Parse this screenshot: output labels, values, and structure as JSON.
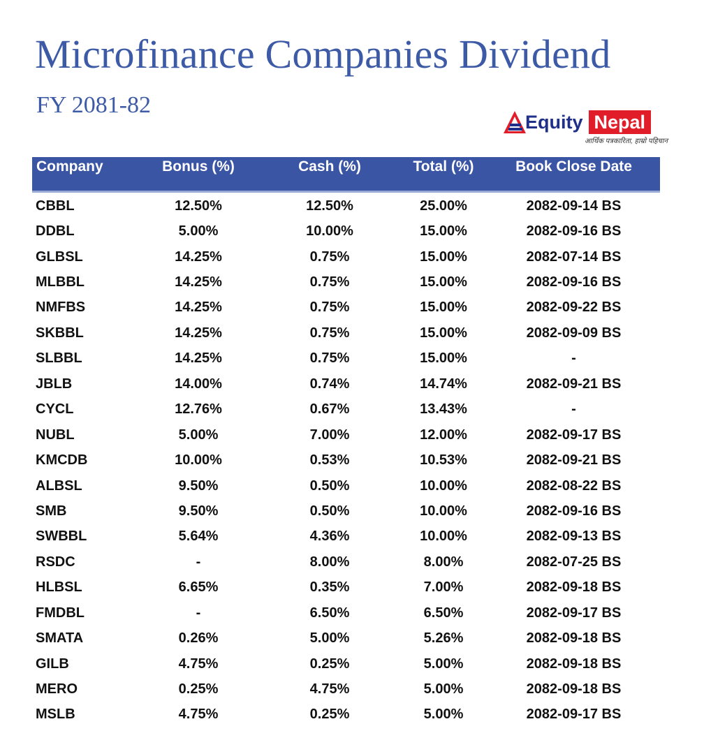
{
  "title": "Microfinance Companies Dividend",
  "subtitle": "FY 2081-82",
  "logo": {
    "brand_part1": "Equity",
    "brand_part2": "Nepal",
    "tagline": "आर्थिक पत्रकारिता, हाम्रो पहिचान",
    "colors": {
      "navy": "#1f2f8a",
      "red": "#e11d2a"
    }
  },
  "colors": {
    "accent": "#3d5aa6",
    "header_bg": "#3b55a5"
  },
  "table": {
    "headers": [
      "Company",
      "Bonus (%)",
      "Cash (%)",
      "Total (%)",
      "Book Close Date"
    ],
    "rows": [
      [
        "CBBL",
        "12.50%",
        "12.50%",
        "25.00%",
        "2082-09-14 BS"
      ],
      [
        "DDBL",
        "5.00%",
        "10.00%",
        "15.00%",
        "2082-09-16 BS"
      ],
      [
        "GLBSL",
        "14.25%",
        "0.75%",
        "15.00%",
        "2082-07-14 BS"
      ],
      [
        "MLBBL",
        "14.25%",
        "0.75%",
        "15.00%",
        "2082-09-16 BS"
      ],
      [
        "NMFBS",
        "14.25%",
        "0.75%",
        "15.00%",
        "2082-09-22 BS"
      ],
      [
        "SKBBL",
        "14.25%",
        "0.75%",
        "15.00%",
        "2082-09-09 BS"
      ],
      [
        "SLBBL",
        "14.25%",
        "0.75%",
        "15.00%",
        "-"
      ],
      [
        "JBLB",
        "14.00%",
        "0.74%",
        "14.74%",
        "2082-09-21 BS"
      ],
      [
        "CYCL",
        "12.76%",
        "0.67%",
        "13.43%",
        "-"
      ],
      [
        "NUBL",
        "5.00%",
        "7.00%",
        "12.00%",
        "2082-09-17 BS"
      ],
      [
        "KMCDB",
        "10.00%",
        "0.53%",
        "10.53%",
        "2082-09-21 BS"
      ],
      [
        "ALBSL",
        "9.50%",
        "0.50%",
        "10.00%",
        "2082-08-22 BS"
      ],
      [
        "SMB",
        "9.50%",
        "0.50%",
        "10.00%",
        "2082-09-16 BS"
      ],
      [
        "SWBBL",
        "5.64%",
        "4.36%",
        "10.00%",
        "2082-09-13 BS"
      ],
      [
        "RSDC",
        "-",
        "8.00%",
        "8.00%",
        "2082-07-25 BS"
      ],
      [
        "HLBSL",
        "6.65%",
        "0.35%",
        "7.00%",
        "2082-09-18 BS"
      ],
      [
        "FMDBL",
        "-",
        "6.50%",
        "6.50%",
        "2082-09-17 BS"
      ],
      [
        "SMATA",
        "0.26%",
        "5.00%",
        "5.26%",
        "2082-09-18 BS"
      ],
      [
        "GILB",
        "4.75%",
        "0.25%",
        "5.00%",
        "2082-09-18 BS"
      ],
      [
        "MERO",
        "0.25%",
        "4.75%",
        "5.00%",
        "2082-09-18 BS"
      ],
      [
        "MSLB",
        "4.75%",
        "0.25%",
        "5.00%",
        "2082-09-17 BS"
      ]
    ]
  }
}
